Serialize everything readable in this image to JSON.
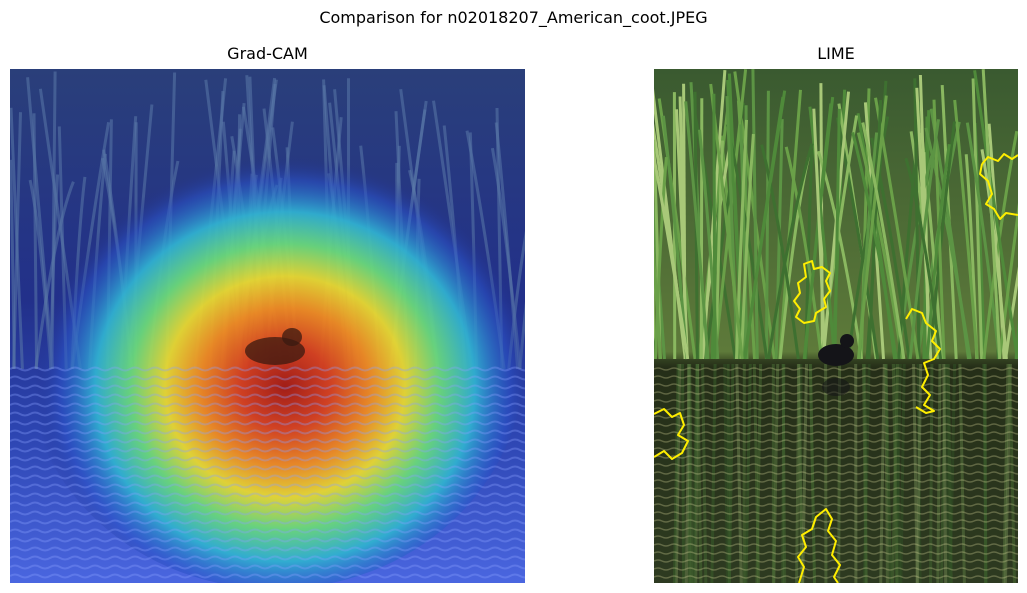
{
  "figure": {
    "title": "Comparison for n02018207_American_coot.JPEG"
  },
  "panels": [
    {
      "id": "gradcam",
      "title": "Grad-CAM",
      "image": "gradcam-heatmap-overlay"
    },
    {
      "id": "lime",
      "title": "LIME",
      "image": "lime-boundary-overlay"
    }
  ],
  "colors": {
    "heat_hot": "#c0281c",
    "heat_warm": "#f0d020",
    "heat_mid": "#3ec8b0",
    "heat_cold": "#1c2a8c",
    "lime_boundary": "#ffee00",
    "reed_green": "#4f8a3a",
    "water_dark": "#2e3a20"
  }
}
